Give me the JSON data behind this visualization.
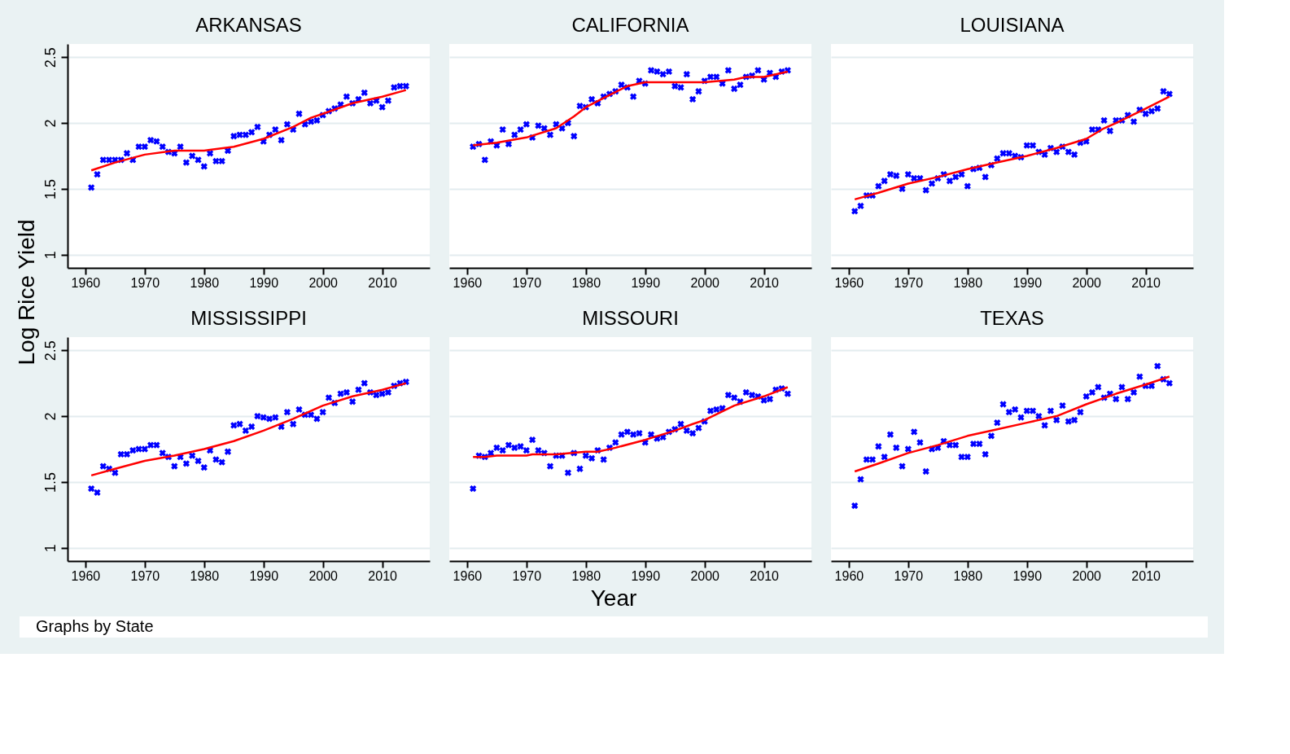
{
  "chart_data": [
    {
      "type": "scatter",
      "title": "ARKANSAS",
      "ylabel": "Log Rice Yield",
      "xlim": [
        1957,
        2018
      ],
      "xticks": [
        1960,
        1970,
        1980,
        1990,
        2000,
        2010
      ],
      "ylim": [
        0.9,
        2.6
      ],
      "yticks": [
        1,
        1.5,
        2,
        2.5
      ],
      "grid": "y",
      "series": [
        {
          "type": "scatter",
          "color": "#0000ff",
          "x": [
            1961,
            1962,
            1963,
            1964,
            1965,
            1966,
            1967,
            1968,
            1969,
            1970,
            1971,
            1972,
            1973,
            1974,
            1975,
            1976,
            1977,
            1978,
            1979,
            1980,
            1981,
            1982,
            1983,
            1984,
            1985,
            1986,
            1987,
            1988,
            1989,
            1990,
            1991,
            1992,
            1993,
            1994,
            1995,
            1996,
            1997,
            1998,
            1999,
            2000,
            2001,
            2002,
            2003,
            2004,
            2005,
            2006,
            2007,
            2008,
            2009,
            2010,
            2011,
            2012,
            2013,
            2014
          ],
          "marker": "cross",
          "values": [
            1.51,
            1.61,
            1.72,
            1.72,
            1.72,
            1.72,
            1.77,
            1.72,
            1.82,
            1.82,
            1.87,
            1.86,
            1.82,
            1.78,
            1.77,
            1.82,
            1.7,
            1.75,
            1.72,
            1.67,
            1.77,
            1.71,
            1.71,
            1.79,
            1.9,
            1.91,
            1.91,
            1.93,
            1.97,
            1.86,
            1.91,
            1.95,
            1.87,
            1.99,
            1.95,
            2.07,
            1.99,
            2.01,
            2.02,
            2.06,
            2.09,
            2.11,
            2.14,
            2.2,
            2.15,
            2.18,
            2.23,
            2.15,
            2.17,
            2.12,
            2.17,
            2.27,
            2.28,
            2.28
          ]
        },
        {
          "type": "line",
          "color": "#ff0000",
          "x": [
            1961,
            1965,
            1970,
            1975,
            1980,
            1985,
            1990,
            1995,
            1998,
            2000,
            2005,
            2010,
            2014
          ],
          "values": [
            1.64,
            1.7,
            1.76,
            1.79,
            1.79,
            1.82,
            1.88,
            1.97,
            2.04,
            2.07,
            2.15,
            2.2,
            2.25
          ]
        }
      ]
    },
    {
      "type": "scatter",
      "title": "CALIFORNIA",
      "xlim": [
        1957,
        2018
      ],
      "xticks": [
        1960,
        1970,
        1980,
        1990,
        2000,
        2010
      ],
      "ylim": [
        0.9,
        2.6
      ],
      "yticks": [
        1,
        1.5,
        2,
        2.5
      ],
      "grid": "y",
      "tick_labels": "x",
      "series": [
        {
          "type": "scatter",
          "color": "#0000ff",
          "x": [
            1961,
            1962,
            1963,
            1964,
            1965,
            1966,
            1967,
            1968,
            1969,
            1970,
            1971,
            1972,
            1973,
            1974,
            1975,
            1976,
            1977,
            1978,
            1979,
            1980,
            1981,
            1982,
            1983,
            1984,
            1985,
            1986,
            1987,
            1988,
            1989,
            1990,
            1991,
            1992,
            1993,
            1994,
            1995,
            1996,
            1997,
            1998,
            1999,
            2000,
            2001,
            2002,
            2003,
            2004,
            2005,
            2006,
            2007,
            2008,
            2009,
            2010,
            2011,
            2012,
            2013,
            2014
          ],
          "marker": "cross",
          "values": [
            1.82,
            1.84,
            1.72,
            1.86,
            1.83,
            1.95,
            1.84,
            1.91,
            1.95,
            1.99,
            1.89,
            1.98,
            1.96,
            1.91,
            1.99,
            1.96,
            2.0,
            1.9,
            2.13,
            2.12,
            2.18,
            2.15,
            2.2,
            2.22,
            2.24,
            2.29,
            2.27,
            2.2,
            2.32,
            2.3,
            2.4,
            2.39,
            2.37,
            2.39,
            2.28,
            2.27,
            2.37,
            2.18,
            2.24,
            2.32,
            2.35,
            2.35,
            2.3,
            2.4,
            2.26,
            2.29,
            2.35,
            2.36,
            2.4,
            2.33,
            2.38,
            2.35,
            2.39,
            2.4
          ]
        },
        {
          "type": "line",
          "color": "#ff0000",
          "x": [
            1961,
            1965,
            1970,
            1975,
            1978,
            1980,
            1983,
            1987,
            1990,
            1995,
            2000,
            2005,
            2007,
            2010,
            2014
          ],
          "values": [
            1.83,
            1.85,
            1.89,
            1.96,
            2.05,
            2.12,
            2.19,
            2.28,
            2.31,
            2.31,
            2.31,
            2.33,
            2.35,
            2.35,
            2.39
          ]
        }
      ]
    },
    {
      "type": "scatter",
      "title": "LOUISIANA",
      "xlim": [
        1957,
        2018
      ],
      "xticks": [
        1960,
        1970,
        1980,
        1990,
        2000,
        2010
      ],
      "ylim": [
        0.9,
        2.6
      ],
      "yticks": [
        1,
        1.5,
        2,
        2.5
      ],
      "grid": "y",
      "tick_labels": "x",
      "series": [
        {
          "type": "scatter",
          "color": "#0000ff",
          "x": [
            1961,
            1962,
            1963,
            1964,
            1965,
            1966,
            1967,
            1968,
            1969,
            1970,
            1971,
            1972,
            1973,
            1974,
            1975,
            1976,
            1977,
            1978,
            1979,
            1980,
            1981,
            1982,
            1983,
            1984,
            1985,
            1986,
            1987,
            1988,
            1989,
            1990,
            1991,
            1992,
            1993,
            1994,
            1995,
            1996,
            1997,
            1998,
            1999,
            2000,
            2001,
            2002,
            2003,
            2004,
            2005,
            2006,
            2007,
            2008,
            2009,
            2010,
            2011,
            2012,
            2013,
            2014
          ],
          "marker": "cross",
          "values": [
            1.33,
            1.37,
            1.45,
            1.45,
            1.52,
            1.56,
            1.61,
            1.6,
            1.5,
            1.61,
            1.58,
            1.58,
            1.49,
            1.54,
            1.58,
            1.61,
            1.56,
            1.59,
            1.61,
            1.52,
            1.65,
            1.66,
            1.59,
            1.68,
            1.73,
            1.77,
            1.77,
            1.75,
            1.74,
            1.83,
            1.83,
            1.78,
            1.76,
            1.81,
            1.78,
            1.82,
            1.78,
            1.76,
            1.85,
            1.86,
            1.95,
            1.95,
            2.02,
            1.94,
            2.02,
            2.02,
            2.06,
            2.01,
            2.1,
            2.07,
            2.09,
            2.11,
            2.24,
            2.22
          ]
        },
        {
          "type": "line",
          "color": "#ff0000",
          "x": [
            1961,
            1965,
            1970,
            1975,
            1980,
            1985,
            1990,
            1995,
            2000,
            2003,
            2005,
            2010,
            2014
          ],
          "values": [
            1.42,
            1.47,
            1.54,
            1.59,
            1.65,
            1.7,
            1.75,
            1.81,
            1.88,
            1.96,
            2.0,
            2.11,
            2.2
          ]
        }
      ]
    },
    {
      "type": "scatter",
      "title": "MISSISSIPPI",
      "annotations": [
        "Graphs by State"
      ],
      "xlim": [
        1957,
        2018
      ],
      "xticks": [
        1960,
        1970,
        1980,
        1990,
        2000,
        2010
      ],
      "ylim": [
        0.9,
        2.6
      ],
      "yticks": [
        1,
        1.5,
        2,
        2.5
      ],
      "grid": "y",
      "series": [
        {
          "marker": "cross",
          "color": "#0000ff",
          "x": [
            1961,
            1962,
            1963,
            1964,
            1965,
            1966,
            1967,
            1968,
            1969,
            1970,
            1971,
            1972,
            1973,
            1974,
            1975,
            1976,
            1977,
            1978,
            1979,
            1980,
            1981,
            1982,
            1983,
            1984,
            1985,
            1986,
            1987,
            1988,
            1989,
            1990,
            1991,
            1992,
            1993,
            1994,
            1995,
            1996,
            1997,
            1998,
            1999,
            2000,
            2001,
            2002,
            2003,
            2004,
            2005,
            2006,
            2007,
            2008,
            2009,
            2010,
            2011,
            2012,
            2013,
            2014
          ],
          "values": [
            1.45,
            1.42,
            1.62,
            1.6,
            1.57,
            1.71,
            1.71,
            1.74,
            1.75,
            1.75,
            1.78,
            1.78,
            1.72,
            1.69,
            1.62,
            1.69,
            1.64,
            1.7,
            1.66,
            1.61,
            1.74,
            1.67,
            1.65,
            1.73,
            1.93,
            1.94,
            1.89,
            1.92,
            2.0,
            1.99,
            1.98,
            1.99,
            1.92,
            2.03,
            1.94,
            2.05,
            2.01,
            2.01,
            1.98,
            2.03,
            2.14,
            2.1,
            2.17,
            2.18,
            2.11,
            2.2,
            2.25,
            2.18,
            2.16,
            2.17,
            2.18,
            2.23,
            2.25,
            2.26
          ]
        },
        {
          "type": "line",
          "color": "#ff0000",
          "x": [
            1961,
            1965,
            1970,
            1975,
            1980,
            1985,
            1990,
            1995,
            2000,
            2005,
            2010,
            2014
          ],
          "values": [
            1.55,
            1.6,
            1.66,
            1.7,
            1.75,
            1.81,
            1.89,
            1.98,
            2.08,
            2.15,
            2.2,
            2.25
          ]
        }
      ]
    },
    {
      "type": "scatter",
      "title": "MISSOURI",
      "xlabel": "Year",
      "xlim": [
        1957,
        2018
      ],
      "xticks": [
        1960,
        1970,
        1980,
        1990,
        2000,
        2010
      ],
      "ylim": [
        0.9,
        2.6
      ],
      "yticks": [
        1,
        1.5,
        2,
        2.5
      ],
      "grid": "y",
      "tick_labels": "x",
      "series": [
        {
          "marker": "cross",
          "color": "#0000ff",
          "x": [
            1961,
            1962,
            1963,
            1964,
            1965,
            1966,
            1967,
            1968,
            1969,
            1970,
            1971,
            1972,
            1973,
            1974,
            1975,
            1976,
            1977,
            1978,
            1979,
            1980,
            1981,
            1982,
            1983,
            1984,
            1985,
            1986,
            1987,
            1988,
            1989,
            1990,
            1991,
            1992,
            1993,
            1994,
            1995,
            1996,
            1997,
            1998,
            1999,
            2000,
            2001,
            2002,
            2003,
            2004,
            2005,
            2006,
            2007,
            2008,
            2009,
            2010,
            2011,
            2012,
            2013,
            2014
          ],
          "values": [
            1.45,
            1.7,
            1.69,
            1.72,
            1.76,
            1.74,
            1.78,
            1.76,
            1.77,
            1.74,
            1.82,
            1.74,
            1.72,
            1.62,
            1.7,
            1.7,
            1.57,
            1.72,
            1.6,
            1.7,
            1.68,
            1.74,
            1.67,
            1.76,
            1.8,
            1.86,
            1.88,
            1.86,
            1.87,
            1.8,
            1.86,
            1.83,
            1.84,
            1.88,
            1.9,
            1.94,
            1.89,
            1.87,
            1.91,
            1.96,
            2.04,
            2.05,
            2.06,
            2.16,
            2.14,
            2.11,
            2.18,
            2.16,
            2.15,
            2.12,
            2.13,
            2.2,
            2.21,
            2.17
          ]
        },
        {
          "type": "line",
          "color": "#ff0000",
          "x": [
            1961,
            1963,
            1965,
            1970,
            1971,
            1975,
            1980,
            1982,
            1985,
            1990,
            1995,
            1998,
            2000,
            2005,
            2010,
            2014
          ],
          "values": [
            1.69,
            1.69,
            1.7,
            1.7,
            1.71,
            1.71,
            1.73,
            1.73,
            1.76,
            1.82,
            1.89,
            1.94,
            1.97,
            2.08,
            2.15,
            2.22
          ]
        }
      ]
    },
    {
      "type": "scatter",
      "title": "TEXAS",
      "xlim": [
        1957,
        2018
      ],
      "xticks": [
        1960,
        1970,
        1980,
        1990,
        2000,
        2010
      ],
      "ylim": [
        0.9,
        2.6
      ],
      "yticks": [
        1,
        1.5,
        2,
        2.5
      ],
      "grid": "y",
      "tick_labels": "x",
      "series": [
        {
          "marker": "cross",
          "color": "#0000ff",
          "x": [
            1961,
            1962,
            1963,
            1964,
            1965,
            1966,
            1967,
            1968,
            1969,
            1970,
            1971,
            1972,
            1973,
            1974,
            1975,
            1976,
            1977,
            1978,
            1979,
            1980,
            1981,
            1982,
            1983,
            1984,
            1985,
            1986,
            1987,
            1988,
            1989,
            1990,
            1991,
            1992,
            1993,
            1994,
            1995,
            1996,
            1997,
            1998,
            1999,
            2000,
            2001,
            2002,
            2003,
            2004,
            2005,
            2006,
            2007,
            2008,
            2009,
            2010,
            2011,
            2012,
            2013,
            2014
          ],
          "values": [
            1.32,
            1.52,
            1.67,
            1.67,
            1.77,
            1.69,
            1.86,
            1.76,
            1.62,
            1.75,
            1.88,
            1.8,
            1.58,
            1.75,
            1.76,
            1.81,
            1.78,
            1.78,
            1.69,
            1.69,
            1.79,
            1.79,
            1.71,
            1.85,
            1.95,
            2.09,
            2.03,
            2.05,
            1.99,
            2.04,
            2.04,
            2.0,
            1.93,
            2.04,
            1.97,
            2.08,
            1.96,
            1.97,
            2.03,
            2.15,
            2.18,
            2.22,
            2.14,
            2.17,
            2.13,
            2.22,
            2.13,
            2.18,
            2.3,
            2.23,
            2.23,
            2.38,
            2.28,
            2.25
          ]
        },
        {
          "type": "line",
          "color": "#ff0000",
          "x": [
            1961,
            1965,
            1970,
            1975,
            1980,
            1985,
            1990,
            1995,
            2000,
            2005,
            2010,
            2014
          ],
          "values": [
            1.58,
            1.64,
            1.72,
            1.78,
            1.85,
            1.9,
            1.95,
            2.0,
            2.09,
            2.17,
            2.24,
            2.3
          ]
        }
      ]
    }
  ]
}
